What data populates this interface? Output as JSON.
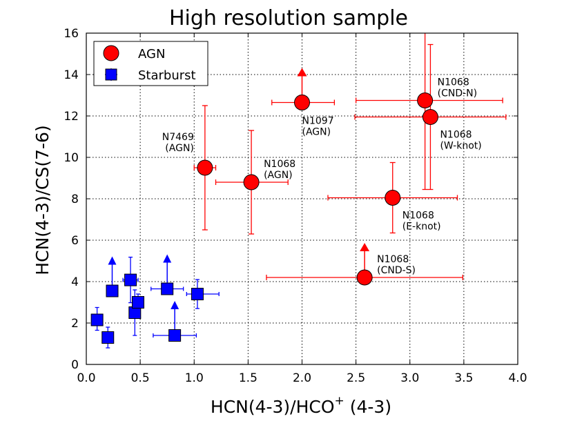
{
  "colors": {
    "agn_face": "#ff0000",
    "agn_err": "#ff0000",
    "starburst_face": "#0000ff",
    "starburst_err": "#0000ff",
    "edge": "#000000"
  },
  "chart_data": {
    "type": "scatter",
    "title": "High resolution sample",
    "xlabel_main": "HCN(4-3)/HCO",
    "xlabel_sup": "+",
    "xlabel_tail": " (4-3)",
    "ylabel": "HCN(4-3)/CS(7-6)",
    "xlim": [
      0.0,
      4.0
    ],
    "ylim": [
      0,
      16
    ],
    "xticks": [
      "0.0",
      "0.5",
      "1.0",
      "1.5",
      "2.0",
      "2.5",
      "3.0",
      "3.5",
      "4.0"
    ],
    "yticks": [
      "0",
      "2",
      "4",
      "6",
      "8",
      "10",
      "12",
      "14",
      "16"
    ],
    "grid": true,
    "legend_position": "top-left",
    "legend": [
      {
        "label": "AGN",
        "marker": "circle",
        "series": "agn"
      },
      {
        "label": "Starburst",
        "marker": "square",
        "series": "starburst"
      }
    ],
    "series": [
      {
        "name": "AGN",
        "id": "agn",
        "marker": "circle",
        "points": [
          {
            "x": 1.1,
            "y": 9.5,
            "xerr": [
              0.1,
              0.1
            ],
            "yerr": [
              3.0,
              3.0
            ],
            "label": [
              "N7469",
              "(AGN)"
            ],
            "label_side": "left"
          },
          {
            "x": 1.53,
            "y": 8.8,
            "xerr": [
              0.33,
              0.34
            ],
            "yerr": [
              2.5,
              2.5
            ],
            "label": [
              "N1068",
              "(AGN)"
            ],
            "label_side": "upper-right"
          },
          {
            "x": 2.0,
            "y": 12.65,
            "xerr": [
              0.28,
              0.3
            ],
            "yerr": [
              0.35,
              0.35
            ],
            "label": [
              "N1097",
              "(AGN)"
            ],
            "label_side": "below",
            "lower_limit": true
          },
          {
            "x": 3.14,
            "y": 12.75,
            "xerr": [
              0.64,
              0.72
            ],
            "yerr": [
              4.3,
              4.3
            ],
            "label": [
              "N1068",
              "(CND-N)"
            ],
            "label_side": "upper-right"
          },
          {
            "x": 3.19,
            "y": 11.95,
            "xerr": [
              0.7,
              0.7
            ],
            "yerr": [
              3.5,
              3.5
            ],
            "label": [
              "N1068",
              "(W-knot)"
            ],
            "label_side": "lower-right"
          },
          {
            "x": 2.84,
            "y": 8.05,
            "xerr": [
              0.6,
              0.6
            ],
            "yerr": [
              1.7,
              1.7
            ],
            "label": [
              "N1068",
              "(E-knot)"
            ],
            "label_side": "lower-right"
          },
          {
            "x": 2.58,
            "y": 4.2,
            "xerr": [
              0.91,
              0.91
            ],
            "yerr": [
              0,
              0
            ],
            "label": [
              "N1068",
              "(CND-S)"
            ],
            "label_side": "upper-right",
            "lower_limit": true
          }
        ]
      },
      {
        "name": "Starburst",
        "id": "starburst",
        "marker": "square",
        "points": [
          {
            "x": 0.1,
            "y": 2.15,
            "xerr": [
              0.05,
              0.05
            ],
            "yerr": [
              0.5,
              0.6
            ]
          },
          {
            "x": 0.2,
            "y": 1.3,
            "xerr": [
              0.05,
              0.05
            ],
            "yerr": [
              0.5,
              0.5
            ]
          },
          {
            "x": 0.24,
            "y": 3.55,
            "xerr": [
              0.03,
              0.03
            ],
            "yerr": [
              0,
              0
            ],
            "lower_limit": true
          },
          {
            "x": 0.41,
            "y": 4.08,
            "xerr": [
              0.07,
              0.07
            ],
            "yerr": [
              1.1,
              1.1
            ]
          },
          {
            "x": 0.45,
            "y": 2.5,
            "xerr": [
              0.04,
              0.04
            ],
            "yerr": [
              1.1,
              1.1
            ]
          },
          {
            "x": 0.48,
            "y": 3.0,
            "xerr": [
              0.04,
              0.04
            ],
            "yerr": [
              0.4,
              0.4
            ]
          },
          {
            "x": 0.75,
            "y": 3.65,
            "xerr": [
              0.15,
              0.15
            ],
            "yerr": [
              0,
              0
            ],
            "lower_limit": true
          },
          {
            "x": 0.82,
            "y": 1.4,
            "xerr": [
              0.2,
              0.2
            ],
            "yerr": [
              0,
              0
            ],
            "lower_limit": true
          },
          {
            "x": 1.03,
            "y": 3.4,
            "xerr": [
              0.1,
              0.2
            ],
            "yerr": [
              0.7,
              0.7
            ]
          }
        ]
      }
    ]
  }
}
